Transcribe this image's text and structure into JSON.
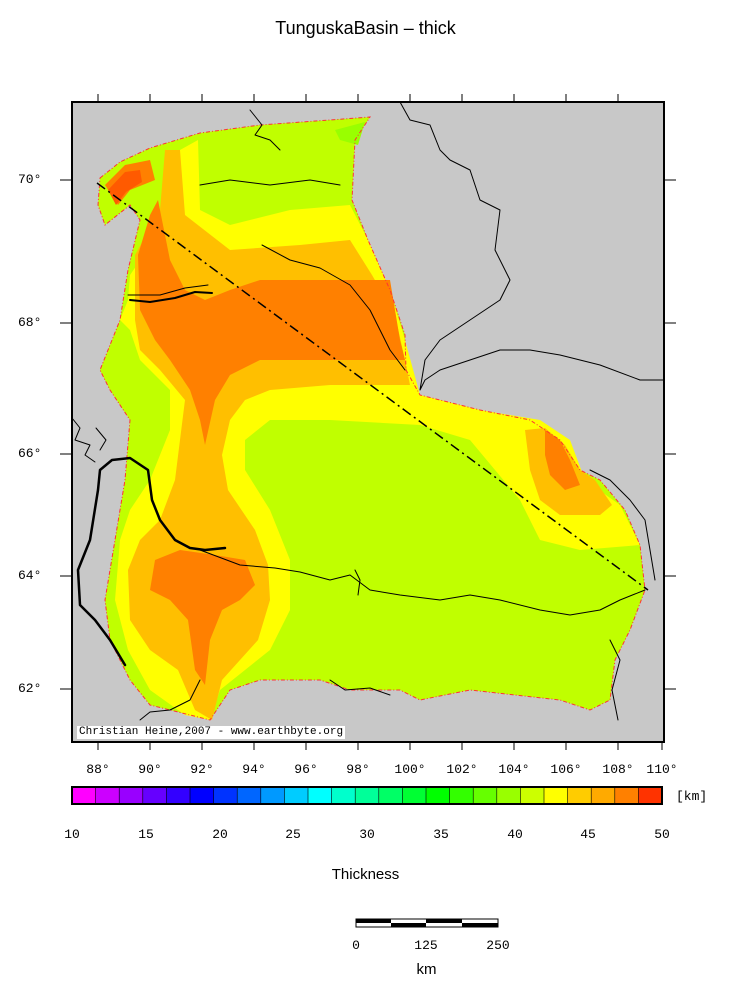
{
  "map": {
    "title": "TunguskaBasin – thick",
    "credit": "Christian Heine,2007 - www.earthbyte.org",
    "lon_ticks": [
      "88°",
      "90°",
      "92°",
      "94°",
      "96°",
      "98°",
      "100°",
      "102°",
      "104°",
      "106°",
      "108°",
      "110°"
    ],
    "lat_ticks": [
      "70°",
      "68°",
      "66°",
      "64°",
      "62°"
    ]
  },
  "colorbar": {
    "title": "Thickness",
    "unit": "[km]",
    "labels": [
      "10",
      "15",
      "20",
      "25",
      "30",
      "35",
      "40",
      "45",
      "50"
    ],
    "colors": [
      "#ff00ff",
      "#cc00ff",
      "#9900ff",
      "#6600ff",
      "#3300ff",
      "#0000ff",
      "#0033ff",
      "#0066ff",
      "#0099ff",
      "#00ccff",
      "#00ffff",
      "#00ffcc",
      "#00ff99",
      "#00ff66",
      "#00ff33",
      "#00ff00",
      "#33ff00",
      "#66ff00",
      "#99ff00",
      "#ccff00",
      "#ffff00",
      "#ffcc00",
      "#ffaa00",
      "#ff8000",
      "#ff3300"
    ]
  },
  "scalebar": {
    "labels": [
      "0",
      "125",
      "250"
    ],
    "unit": "km"
  },
  "colors": {
    "land": "#c8c8c8",
    "c40": "#c0ff00",
    "c42": "#99ff00",
    "c45": "#ffff00",
    "c47": "#ffbf00",
    "c49": "#ff8000"
  }
}
